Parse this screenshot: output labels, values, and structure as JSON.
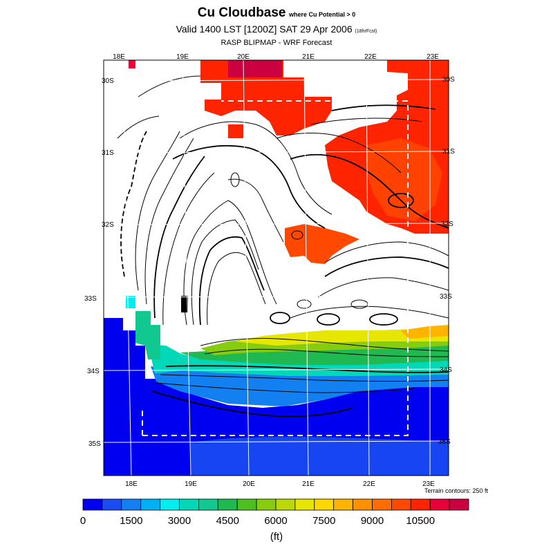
{
  "title": {
    "main": "Cu Cloudbase",
    "qualifier": "where Cu Potential > 0",
    "valid_time": "Valid 1400 LST [1200Z] SAT 29 Apr 2006",
    "forecast_hours": "(18hrFcst)",
    "model": "RASP BLIPMAP - WRF Forecast"
  },
  "map": {
    "lon_labels": [
      "18E",
      "19E",
      "20E",
      "21E",
      "22E",
      "23E"
    ],
    "lat_labels": [
      "30S",
      "31S",
      "32S",
      "33S",
      "34S",
      "35S"
    ],
    "terrain_note": "Terrain contours: 250 ft"
  },
  "colorbar": {
    "colors": [
      "#0000f2",
      "#1a4cf2",
      "#1380f2",
      "#00b0f5",
      "#00eef0",
      "#00d8b8",
      "#10c890",
      "#20b850",
      "#4cc020",
      "#88cc10",
      "#bcd808",
      "#e6e600",
      "#ffd800",
      "#ffb400",
      "#ff9000",
      "#ff6c00",
      "#ff4800",
      "#ff2400",
      "#e8003a",
      "#cc0040"
    ],
    "tick_labels": [
      "0",
      "1500",
      "3000",
      "4500",
      "6000",
      "7500",
      "9000",
      "10500"
    ],
    "unit": "(ft)"
  },
  "chart_data": {
    "type": "heatmap",
    "title": "Cu Cloudbase",
    "subtitle": "Valid 1400 LST [1200Z] SAT 29 Apr 2006",
    "variable": "Cu cloudbase height where Cu Potential > 0",
    "unit": "ft",
    "color_scale": {
      "min": 0,
      "max": 12000,
      "step": 600
    },
    "x_ticks": [
      "18E",
      "19E",
      "20E",
      "21E",
      "22E",
      "23E"
    ],
    "y_ticks": [
      "30S",
      "31S",
      "32S",
      "33S",
      "34S",
      "35S"
    ],
    "grid": true,
    "regions": [
      {
        "area": "north-east interior",
        "approx_value_ft": 10800
      },
      {
        "area": "north-central strip near 30S 20E",
        "approx_value_ft": 11400
      },
      {
        "area": "central band near 32S 21E",
        "approx_value_ft": 10500
      },
      {
        "area": "southern coastal band near 33.7S",
        "approx_value_ft": 6600
      },
      {
        "area": "south coast and ocean",
        "approx_value_ft": 600
      }
    ]
  }
}
